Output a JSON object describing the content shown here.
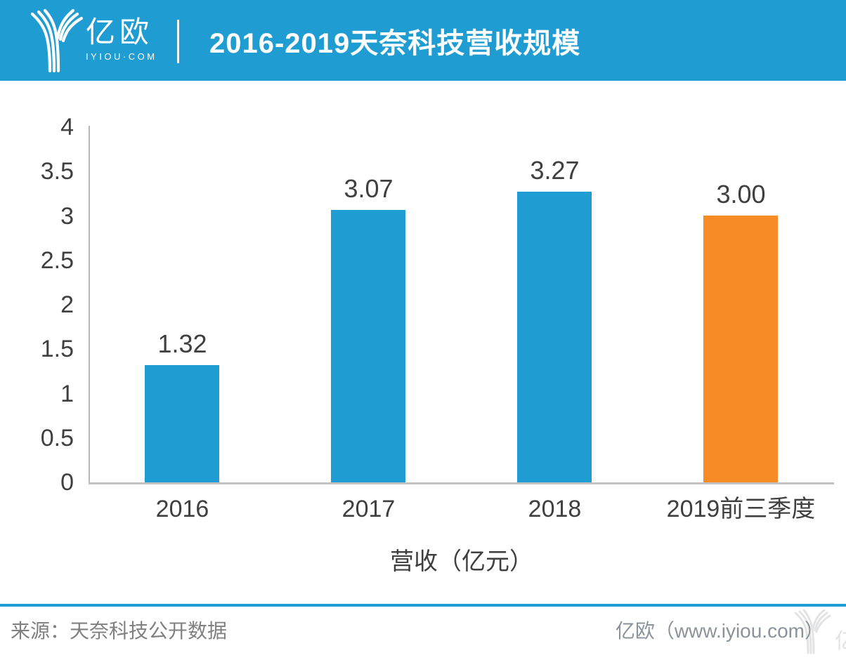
{
  "header": {
    "logo": {
      "name": "亿欧",
      "subtitle": "IYIOU·COM"
    },
    "title": "2016-2019天奈科技营收规模"
  },
  "chart_data": {
    "type": "bar",
    "title": "2016-2019天奈科技营收规模",
    "categories": [
      "2016",
      "2017",
      "2018",
      "2019前三季度"
    ],
    "values": [
      1.32,
      3.07,
      3.27,
      3.0
    ],
    "value_labels": [
      "1.32",
      "3.07",
      "3.27",
      "3.00"
    ],
    "bar_colors": [
      "#1F9CD2",
      "#1F9CD2",
      "#1F9CD2",
      "#F78C26"
    ],
    "xlabel": "营收（亿元）",
    "ylabel": "",
    "ylim": [
      0,
      4
    ],
    "yticks": [
      0,
      0.5,
      1,
      1.5,
      2,
      2.5,
      3,
      3.5,
      4
    ],
    "ytick_labels": [
      "0",
      "0.5",
      "1",
      "1.5",
      "2",
      "2.5",
      "3",
      "3.5",
      "4"
    ],
    "grid": false,
    "legend": false
  },
  "footer": {
    "source": "来源：天奈科技公开数据",
    "brand": "亿欧（www.iyiou.com）"
  },
  "colors": {
    "accent_blue": "#1F9CD2",
    "bar_blue": "#1F9CD2",
    "bar_orange": "#F78C26",
    "axis_gray": "#C2C2C2",
    "chart_text": "#3F3F3F",
    "source_text": "#808080",
    "brand_text": "#8A939B",
    "watermark": "#E3E3E3"
  }
}
